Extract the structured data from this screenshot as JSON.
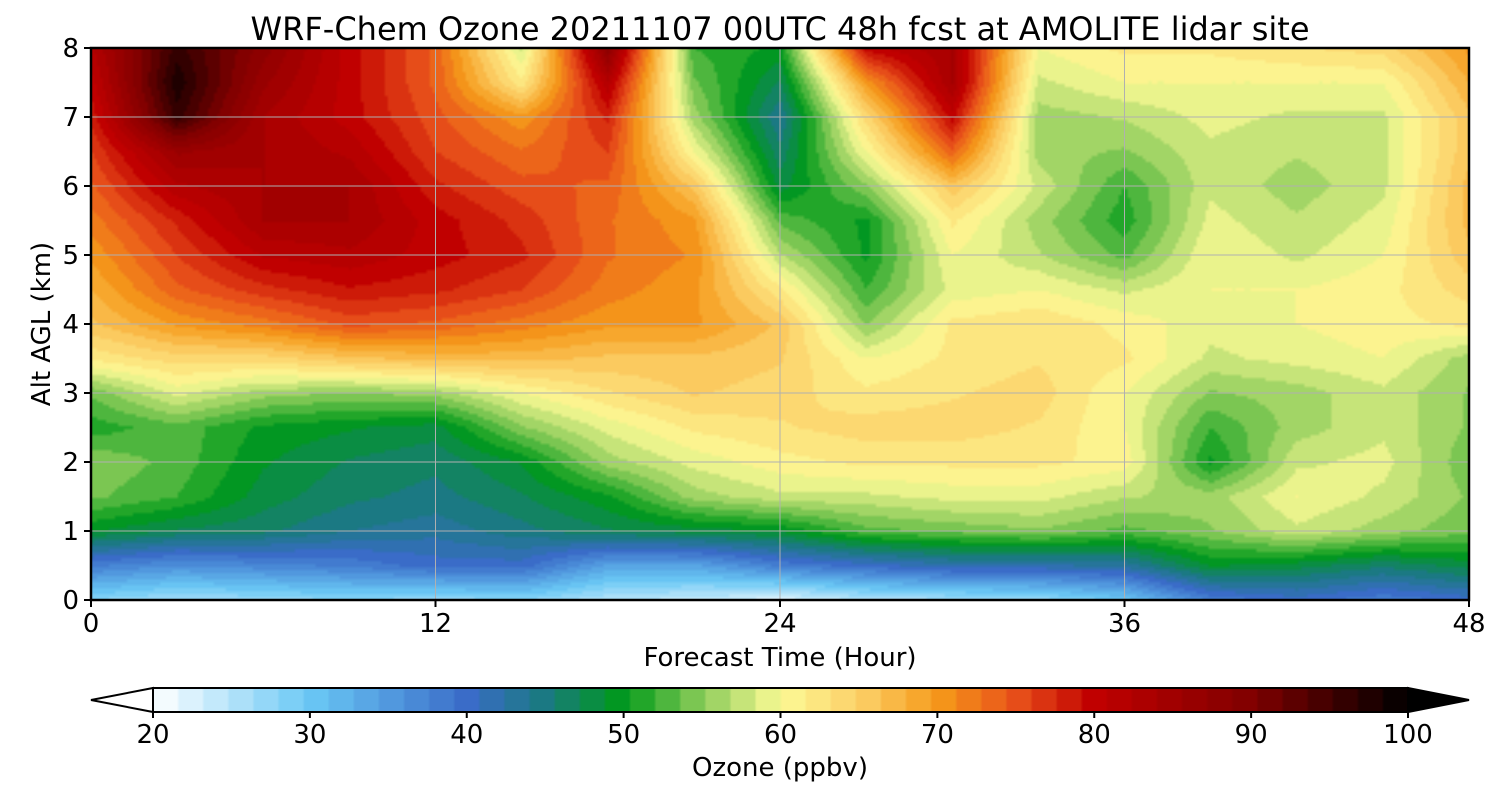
{
  "chart_data": {
    "type": "heatmap",
    "title": "WRF-Chem Ozone  20211107 00UTC 48h fcst at AMOLITE lidar site",
    "xlabel": "Forecast Time (Hour)",
    "ylabel": "Alt AGL (km)",
    "xlim": [
      0,
      48
    ],
    "ylim": [
      0,
      8
    ],
    "xticks": [
      "0",
      "12",
      "24",
      "36",
      "48"
    ],
    "yticks": [
      "0",
      "1",
      "2",
      "3",
      "4",
      "5",
      "6",
      "7",
      "8"
    ],
    "grid": true,
    "colorbar": {
      "label": "Ozone  (ppbv)",
      "range": [
        20,
        100
      ],
      "ticks": [
        "20",
        "30",
        "40",
        "50",
        "60",
        "70",
        "80",
        "90",
        "100"
      ],
      "extend": "both",
      "stops": [
        {
          "v": 20,
          "c": "#ffffff"
        },
        {
          "v": 30,
          "c": "#6ac8f5"
        },
        {
          "v": 40,
          "c": "#3a6cc8"
        },
        {
          "v": 45,
          "c": "#1a7a80"
        },
        {
          "v": 50,
          "c": "#009a1a"
        },
        {
          "v": 55,
          "c": "#8ccc5a"
        },
        {
          "v": 60,
          "c": "#fcfa96"
        },
        {
          "v": 65,
          "c": "#fcd068"
        },
        {
          "v": 70,
          "c": "#f59a1a"
        },
        {
          "v": 75,
          "c": "#e8501a"
        },
        {
          "v": 80,
          "c": "#c00000"
        },
        {
          "v": 90,
          "c": "#800000"
        },
        {
          "v": 100,
          "c": "#000000"
        }
      ]
    },
    "x": [
      0,
      3,
      6,
      9,
      12,
      15,
      18,
      21,
      24,
      27,
      30,
      33,
      36,
      39,
      42,
      45,
      48
    ],
    "y": [
      0,
      0.5,
      1,
      1.5,
      2,
      2.5,
      3,
      3.5,
      4,
      4.5,
      5,
      5.5,
      6,
      6.5,
      7,
      7.5,
      8
    ],
    "z": [
      [
        28,
        26,
        27,
        28,
        27,
        28,
        25,
        24,
        22,
        25,
        26,
        27,
        30,
        38,
        40,
        38,
        40
      ],
      [
        38,
        36,
        37,
        38,
        40,
        40,
        34,
        34,
        38,
        40,
        42,
        42,
        43,
        49,
        48,
        46,
        48
      ],
      [
        49,
        47,
        46,
        44,
        43,
        45,
        47,
        48,
        49,
        53,
        54,
        55,
        53,
        55,
        58,
        56,
        54
      ],
      [
        54,
        52,
        48,
        46,
        45,
        47,
        50,
        56,
        58,
        58,
        59,
        59,
        57,
        56,
        60,
        58,
        55
      ],
      [
        55,
        53,
        49,
        47,
        46,
        49,
        56,
        59,
        61,
        62,
        62,
        62,
        61,
        50,
        58,
        59,
        54
      ],
      [
        51,
        53,
        50,
        49,
        48,
        55,
        59,
        62,
        63,
        64,
        64,
        63,
        60,
        52,
        56,
        58,
        55
      ],
      [
        54,
        59,
        56,
        55,
        56,
        60,
        63,
        65,
        64,
        62,
        63,
        64,
        60,
        55,
        56,
        58,
        55
      ],
      [
        62,
        64,
        64,
        66,
        67,
        67,
        66,
        66,
        65,
        60,
        62,
        63,
        62,
        58,
        59,
        60,
        56
      ],
      [
        66,
        70,
        72,
        75,
        74,
        72,
        70,
        70,
        66,
        55,
        62,
        63,
        61,
        59,
        60,
        61,
        62
      ],
      [
        68,
        74,
        77,
        79,
        78,
        76,
        72,
        70,
        62,
        52,
        59,
        60,
        58,
        60,
        60,
        61,
        64
      ],
      [
        70,
        76,
        81,
        82,
        80,
        78,
        73,
        71,
        57,
        50,
        60,
        57,
        53,
        60,
        58,
        60,
        66
      ],
      [
        72,
        78,
        84,
        84,
        80,
        77,
        73,
        70,
        53,
        50,
        62,
        56,
        51,
        59,
        57,
        59,
        67
      ],
      [
        74,
        82,
        84,
        84,
        78,
        75,
        74,
        66,
        48,
        55,
        66,
        58,
        52,
        58,
        56,
        58,
        67
      ],
      [
        76,
        86,
        84,
        82,
        76,
        73,
        76,
        60,
        46,
        60,
        74,
        56,
        55,
        58,
        57,
        58,
        66
      ],
      [
        78,
        96,
        84,
        80,
        75,
        70,
        78,
        56,
        44,
        64,
        80,
        56,
        57,
        59,
        58,
        58,
        66
      ],
      [
        80,
        98,
        86,
        80,
        74,
        62,
        82,
        54,
        47,
        70,
        84,
        58,
        60,
        60,
        60,
        60,
        68
      ],
      [
        82,
        96,
        88,
        80,
        74,
        58,
        88,
        52,
        50,
        80,
        84,
        60,
        62,
        62,
        63,
        64,
        70
      ]
    ]
  }
}
